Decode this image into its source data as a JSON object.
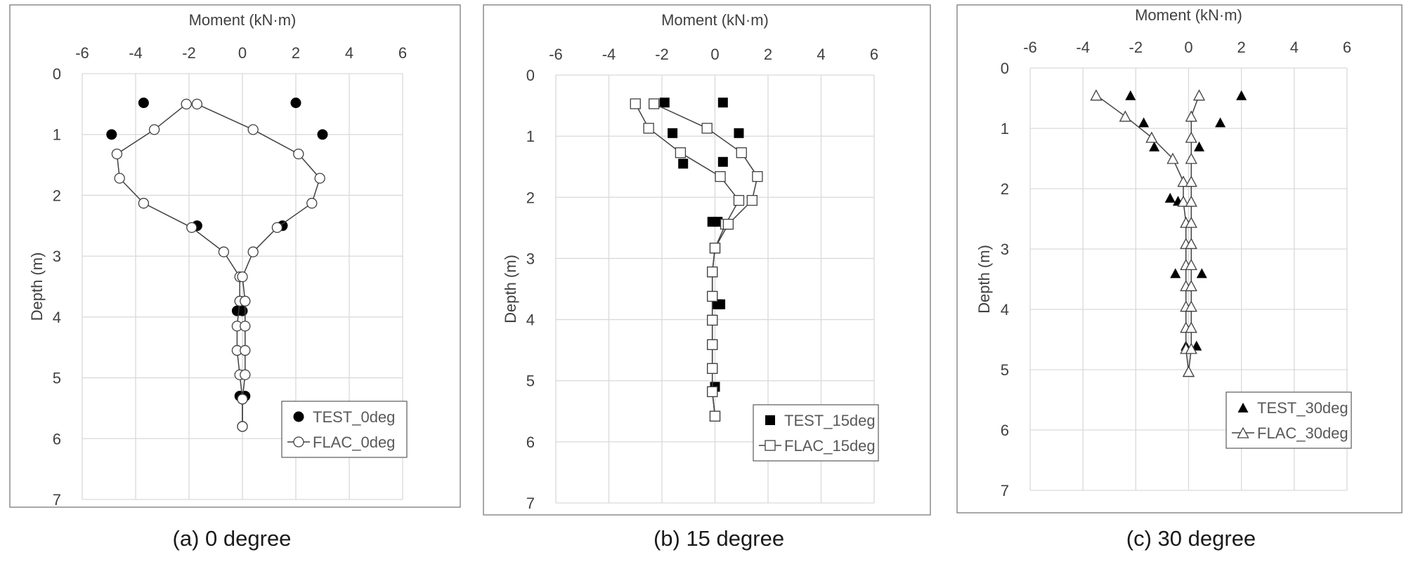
{
  "chart_data": [
    {
      "type": "scatter",
      "caption": "(a) 0 degree",
      "xlabel": "Moment (kN·m)",
      "ylabel": "Depth (m)",
      "xlim": [
        -6,
        6
      ],
      "ylim": [
        0,
        7
      ],
      "y_inverted": true,
      "x_axis_position": "top",
      "xticks": [
        "-6",
        "-4",
        "-2",
        "0",
        "2",
        "4",
        "6"
      ],
      "yticks": [
        "0",
        "1",
        "2",
        "3",
        "4",
        "5",
        "6",
        "7"
      ],
      "grid": true,
      "legend_position": "bottom-right",
      "series": [
        {
          "name": "TEST_0deg",
          "marker": "filled-circle",
          "line": false,
          "points": [
            [
              -3.7,
              0.48
            ],
            [
              2.0,
              0.48
            ],
            [
              -4.9,
              1.0
            ],
            [
              3.0,
              1.0
            ],
            [
              -1.7,
              2.5
            ],
            [
              1.5,
              2.5
            ],
            [
              -0.2,
              3.9
            ],
            [
              0.0,
              3.9
            ],
            [
              -0.1,
              5.3
            ],
            [
              0.1,
              5.3
            ]
          ]
        },
        {
          "name": "FLAC_0deg",
          "marker": "open-circle",
          "line": true,
          "paths": [
            [
              [
                -2.1,
                0.5
              ],
              [
                -3.3,
                0.92
              ],
              [
                -4.7,
                1.32
              ],
              [
                -4.6,
                1.72
              ],
              [
                -3.7,
                2.13
              ],
              [
                -1.9,
                2.53
              ],
              [
                -0.7,
                2.93
              ],
              [
                -0.1,
                3.34
              ],
              [
                -0.1,
                3.74
              ],
              [
                -0.2,
                4.15
              ],
              [
                -0.2,
                4.55
              ],
              [
                -0.1,
                4.95
              ],
              [
                0.0,
                5.35
              ],
              [
                0.0,
                5.8
              ]
            ],
            [
              [
                -1.7,
                0.5
              ],
              [
                0.4,
                0.92
              ],
              [
                2.1,
                1.32
              ],
              [
                2.9,
                1.72
              ],
              [
                2.6,
                2.13
              ],
              [
                1.3,
                2.53
              ],
              [
                0.4,
                2.93
              ],
              [
                0.0,
                3.34
              ],
              [
                0.1,
                3.74
              ],
              [
                0.1,
                4.15
              ],
              [
                0.1,
                4.55
              ],
              [
                0.1,
                4.95
              ],
              [
                0.0,
                5.35
              ],
              [
                0.0,
                5.8
              ]
            ]
          ]
        }
      ]
    },
    {
      "type": "scatter",
      "caption": "(b) 15 degree",
      "xlabel": "Moment (kN·m)",
      "ylabel": "Depth (m)",
      "xlim": [
        -6,
        6
      ],
      "ylim": [
        0,
        7
      ],
      "y_inverted": true,
      "x_axis_position": "top",
      "xticks": [
        "-6",
        "-4",
        "-2",
        "0",
        "2",
        "4",
        "6"
      ],
      "yticks": [
        "0",
        "1",
        "2",
        "3",
        "4",
        "5",
        "6",
        "7"
      ],
      "grid": true,
      "legend_position": "bottom-right",
      "series": [
        {
          "name": "TEST_15deg",
          "marker": "filled-square",
          "line": false,
          "points": [
            [
              -1.9,
              0.45
            ],
            [
              0.3,
              0.45
            ],
            [
              -1.6,
              0.95
            ],
            [
              0.9,
              0.95
            ],
            [
              -1.2,
              1.45
            ],
            [
              0.3,
              1.42
            ],
            [
              -0.1,
              2.4
            ],
            [
              0.1,
              2.4
            ],
            [
              0.1,
              3.75
            ],
            [
              0.2,
              3.75
            ],
            [
              0.0,
              5.1
            ]
          ]
        },
        {
          "name": "FLAC_15deg",
          "marker": "open-square",
          "line": true,
          "paths": [
            [
              [
                -3.0,
                0.47
              ],
              [
                -2.5,
                0.87
              ],
              [
                -1.3,
                1.27
              ],
              [
                0.2,
                1.66
              ],
              [
                0.9,
                2.05
              ],
              [
                0.4,
                2.44
              ],
              [
                0.0,
                2.83
              ],
              [
                -0.1,
                3.22
              ],
              [
                -0.1,
                3.62
              ],
              [
                -0.1,
                4.01
              ],
              [
                -0.1,
                4.41
              ],
              [
                -0.1,
                4.8
              ],
              [
                -0.1,
                5.18
              ],
              [
                0.0,
                5.58
              ]
            ],
            [
              [
                -2.3,
                0.47
              ],
              [
                -0.3,
                0.87
              ],
              [
                1.0,
                1.27
              ],
              [
                1.6,
                1.66
              ],
              [
                1.4,
                2.05
              ],
              [
                0.5,
                2.44
              ],
              [
                0.0,
                2.83
              ],
              [
                -0.1,
                3.22
              ],
              [
                -0.1,
                3.62
              ],
              [
                -0.1,
                4.01
              ],
              [
                -0.1,
                4.41
              ],
              [
                -0.1,
                4.8
              ],
              [
                -0.1,
                5.18
              ],
              [
                0.0,
                5.58
              ]
            ]
          ]
        }
      ]
    },
    {
      "type": "scatter",
      "caption": "(c) 30 degree",
      "xlabel": "Moment (kN·m)",
      "ylabel": "Depth (m)",
      "xlim": [
        -6,
        6
      ],
      "ylim": [
        0,
        7
      ],
      "y_inverted": true,
      "x_axis_position": "top",
      "xticks": [
        "-6",
        "-4",
        "-2",
        "0",
        "2",
        "4",
        "6"
      ],
      "yticks": [
        "0",
        "1",
        "2",
        "3",
        "4",
        "5",
        "6",
        "7"
      ],
      "grid": true,
      "legend_position": "bottom-right",
      "series": [
        {
          "name": "TEST_30deg",
          "marker": "filled-triangle",
          "line": false,
          "points": [
            [
              -2.2,
              0.45
            ],
            [
              2.0,
              0.45
            ],
            [
              -1.7,
              0.9
            ],
            [
              1.2,
              0.9
            ],
            [
              -1.3,
              1.3
            ],
            [
              0.4,
              1.3
            ],
            [
              -0.7,
              2.15
            ],
            [
              -0.4,
              2.2
            ],
            [
              -0.5,
              3.4
            ],
            [
              0.5,
              3.4
            ],
            [
              -0.1,
              4.6
            ],
            [
              0.3,
              4.6
            ]
          ]
        },
        {
          "name": "FLAC_30deg",
          "marker": "open-triangle",
          "line": true,
          "paths": [
            [
              [
                -3.5,
                0.45
              ],
              [
                -2.4,
                0.8
              ],
              [
                -1.4,
                1.15
              ],
              [
                -0.6,
                1.5
              ],
              [
                -0.2,
                1.88
              ],
              [
                -0.2,
                2.21
              ],
              [
                -0.1,
                2.56
              ],
              [
                -0.1,
                2.91
              ],
              [
                -0.1,
                3.26
              ],
              [
                -0.1,
                3.61
              ],
              [
                -0.1,
                3.95
              ],
              [
                -0.1,
                4.3
              ],
              [
                -0.1,
                4.65
              ],
              [
                0.0,
                5.03
              ]
            ],
            [
              [
                0.4,
                0.45
              ],
              [
                0.1,
                0.8
              ],
              [
                0.1,
                1.15
              ],
              [
                0.1,
                1.5
              ],
              [
                0.1,
                1.88
              ],
              [
                0.1,
                2.21
              ],
              [
                0.1,
                2.56
              ],
              [
                0.1,
                2.91
              ],
              [
                0.1,
                3.26
              ],
              [
                0.1,
                3.61
              ],
              [
                0.1,
                3.95
              ],
              [
                0.1,
                4.3
              ],
              [
                0.1,
                4.65
              ],
              [
                0.0,
                5.03
              ]
            ]
          ]
        }
      ]
    }
  ]
}
